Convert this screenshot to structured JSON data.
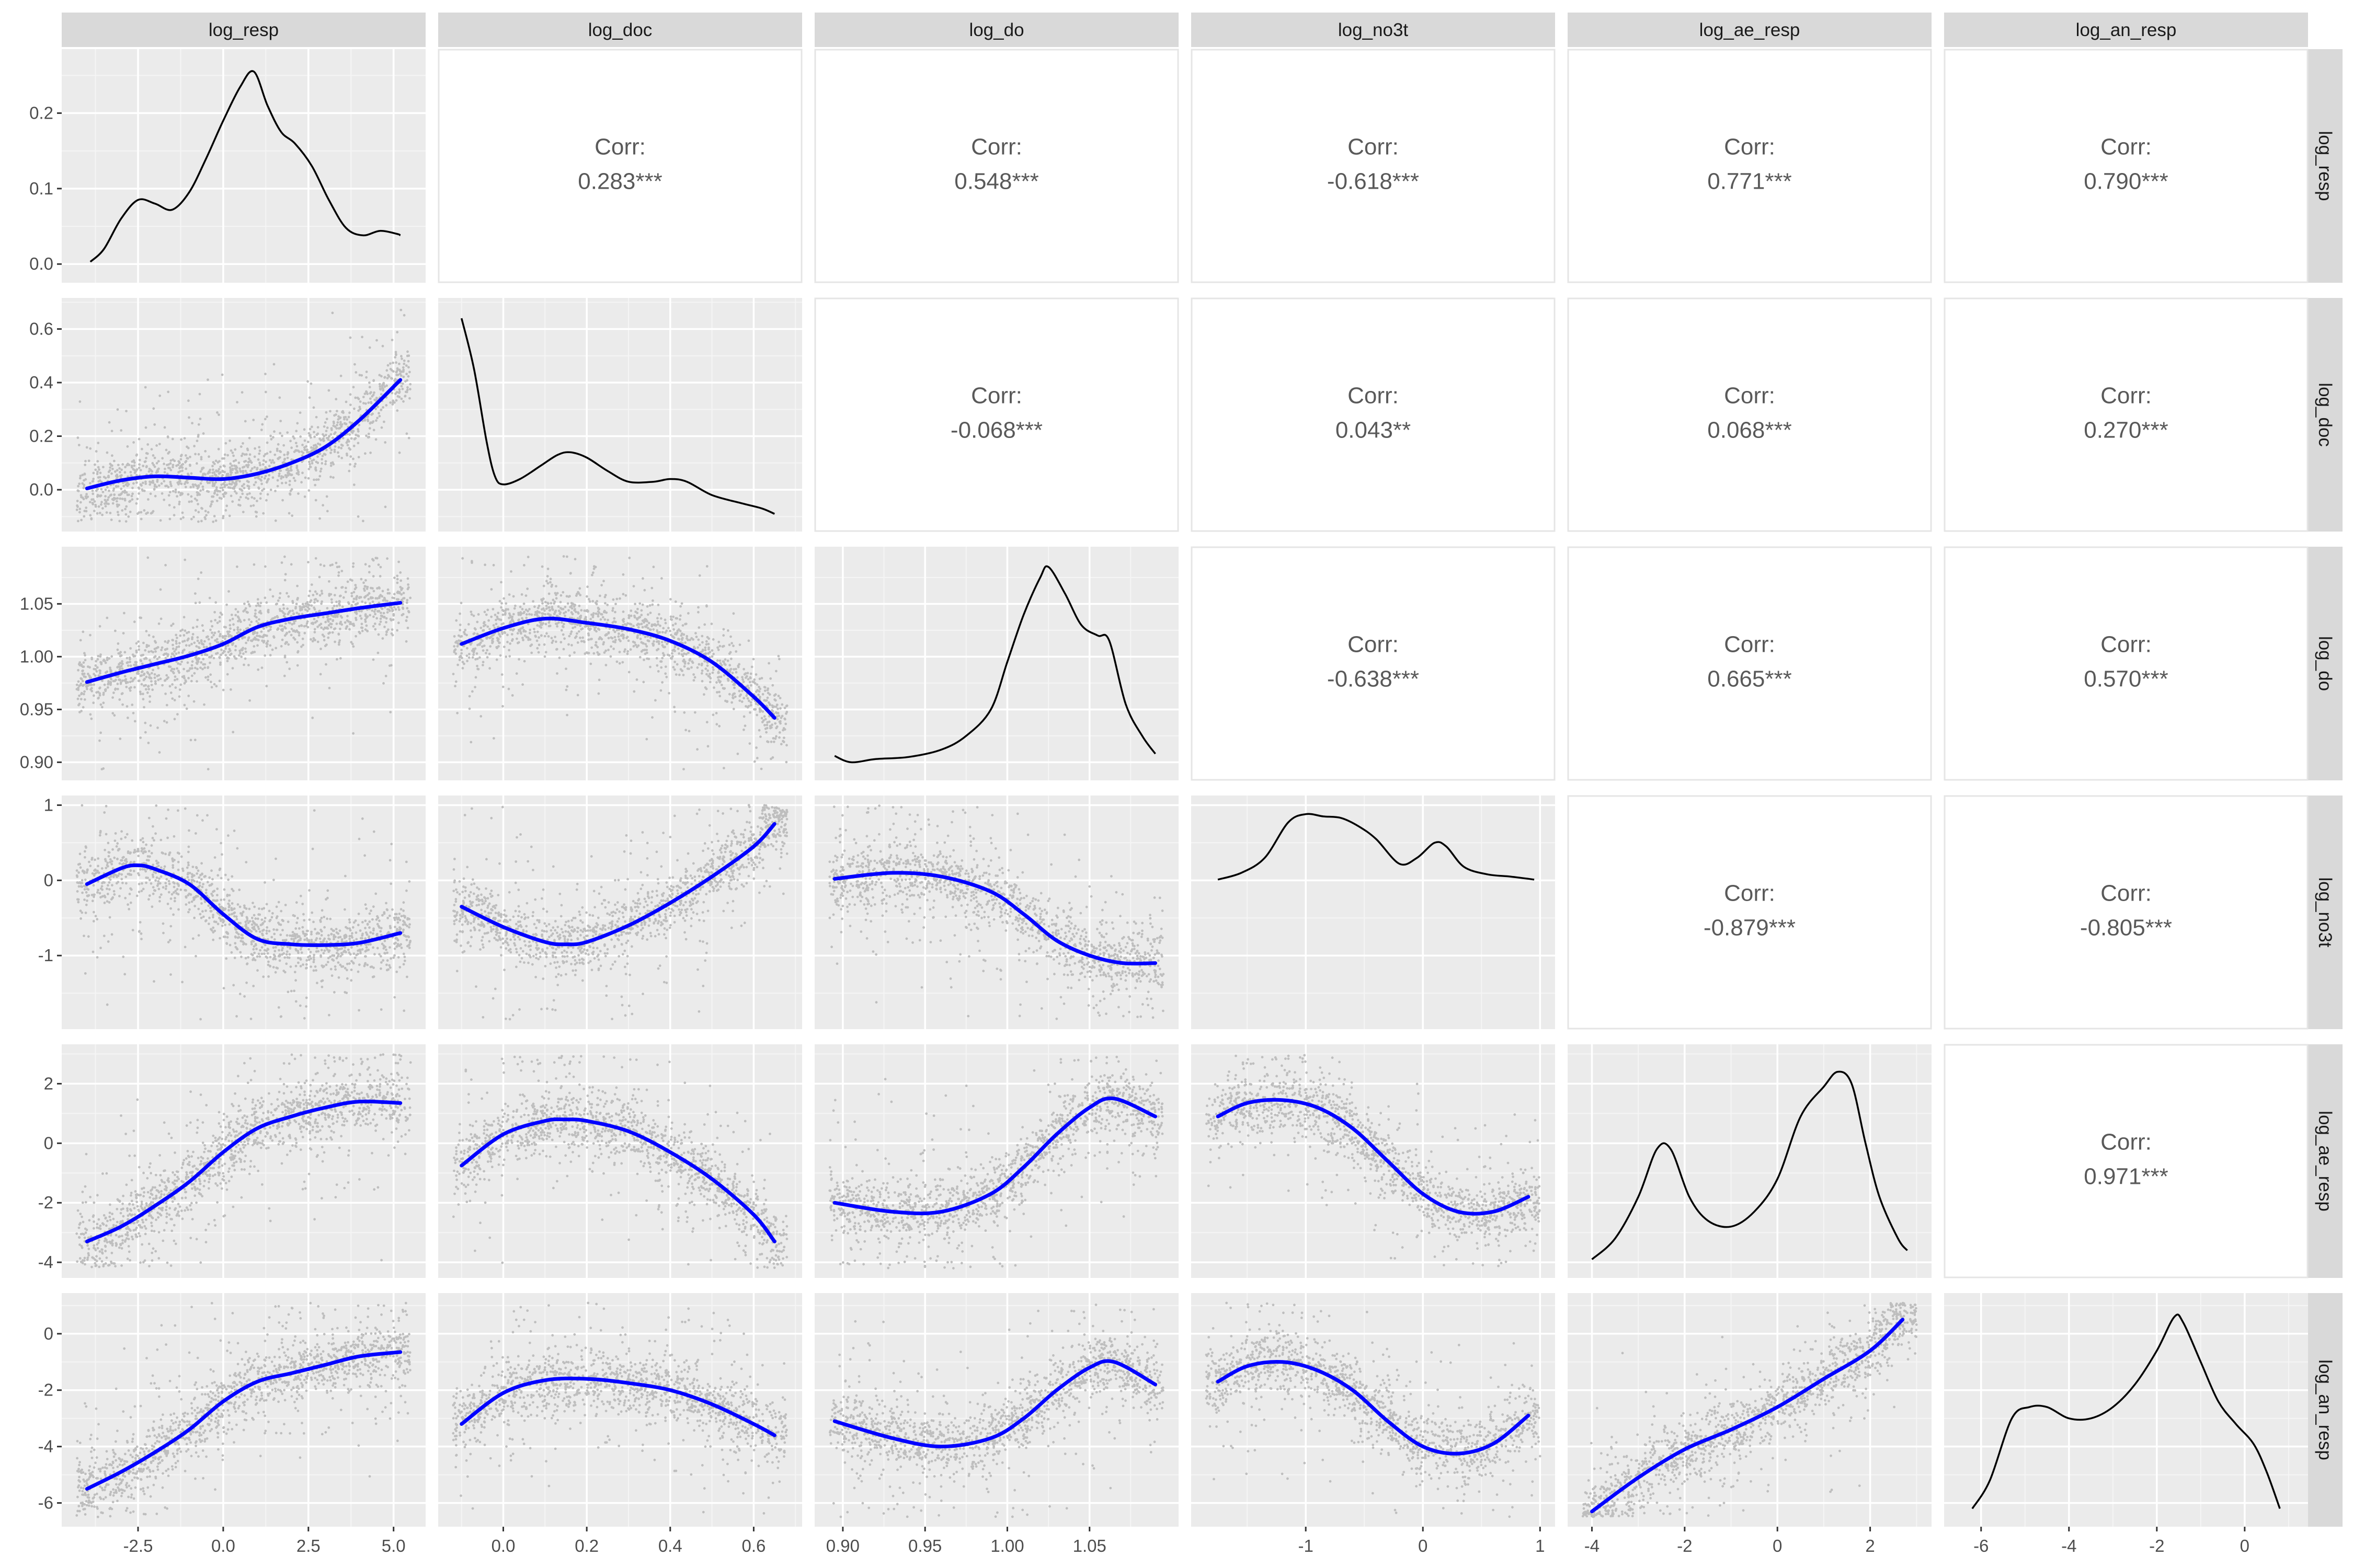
{
  "chart_data": {
    "type": "scatter",
    "variables": [
      "log_resp",
      "log_doc",
      "log_do",
      "log_no3t",
      "log_ae_resp",
      "log_an_resp"
    ],
    "corr_label": "Corr:",
    "correlations": [
      {
        "row": "log_resp",
        "col": "log_doc",
        "value": "0.283***"
      },
      {
        "row": "log_resp",
        "col": "log_do",
        "value": "0.548***"
      },
      {
        "row": "log_resp",
        "col": "log_no3t",
        "value": "-0.618***"
      },
      {
        "row": "log_resp",
        "col": "log_ae_resp",
        "value": "0.771***"
      },
      {
        "row": "log_resp",
        "col": "log_an_resp",
        "value": "0.790***"
      },
      {
        "row": "log_doc",
        "col": "log_do",
        "value": "-0.068***"
      },
      {
        "row": "log_doc",
        "col": "log_no3t",
        "value": "0.043**"
      },
      {
        "row": "log_doc",
        "col": "log_ae_resp",
        "value": "0.068***"
      },
      {
        "row": "log_doc",
        "col": "log_an_resp",
        "value": "0.270***"
      },
      {
        "row": "log_do",
        "col": "log_no3t",
        "value": "-0.638***"
      },
      {
        "row": "log_do",
        "col": "log_ae_resp",
        "value": "0.665***"
      },
      {
        "row": "log_do",
        "col": "log_an_resp",
        "value": "0.570***"
      },
      {
        "row": "log_no3t",
        "col": "log_ae_resp",
        "value": "-0.879***"
      },
      {
        "row": "log_no3t",
        "col": "log_an_resp",
        "value": "-0.805***"
      },
      {
        "row": "log_ae_resp",
        "col": "log_an_resp",
        "value": "0.971***"
      }
    ],
    "axes": {
      "log_resp": {
        "range": [
          -4.3,
          5.5
        ],
        "ticks": [
          -2.5,
          0.0,
          2.5,
          5.0
        ],
        "tick_labels": [
          "-2.5",
          "0.0",
          "2.5",
          "5.0"
        ]
      },
      "log_doc": {
        "range": [
          -0.12,
          0.68
        ],
        "ticks": [
          0.0,
          0.2,
          0.4,
          0.6
        ],
        "tick_labels": [
          "0.0",
          "0.2",
          "0.4",
          "0.6"
        ]
      },
      "log_do": {
        "range": [
          0.892,
          1.095
        ],
        "ticks": [
          0.9,
          0.95,
          1.0,
          1.05
        ],
        "tick_labels": [
          "0.90",
          "0.95",
          "1.00",
          "1.05"
        ]
      },
      "log_no3t": {
        "range": [
          -1.85,
          1.0
        ],
        "ticks": [
          -1,
          0,
          1
        ],
        "tick_labels": [
          "-1",
          "0",
          "1"
        ]
      },
      "log_ae_resp": {
        "range": [
          -4.2,
          3.0
        ],
        "ticks": [
          -4,
          -2,
          0,
          2
        ],
        "tick_labels": [
          "-4",
          "-2",
          "0",
          "2"
        ]
      },
      "log_an_resp": {
        "range": [
          -6.5,
          1.1
        ],
        "ticks": [
          -6,
          -4,
          -2,
          0
        ],
        "tick_labels": [
          "-6",
          "-4",
          "-2",
          "0"
        ]
      }
    },
    "density_axis": {
      "range": [
        -0.012,
        0.272
      ],
      "ticks": [
        0.0,
        0.1,
        0.2
      ],
      "tick_labels": [
        "0.0",
        "0.1",
        "0.2"
      ]
    },
    "densities": {
      "log_resp": [
        [
          -3.9,
          0.003
        ],
        [
          -3.5,
          0.02
        ],
        [
          -3.0,
          0.06
        ],
        [
          -2.5,
          0.085
        ],
        [
          -2.0,
          0.08
        ],
        [
          -1.5,
          0.072
        ],
        [
          -1.0,
          0.095
        ],
        [
          -0.5,
          0.14
        ],
        [
          0.0,
          0.19
        ],
        [
          0.5,
          0.235
        ],
        [
          0.9,
          0.255
        ],
        [
          1.3,
          0.21
        ],
        [
          1.7,
          0.175
        ],
        [
          2.1,
          0.16
        ],
        [
          2.6,
          0.13
        ],
        [
          3.1,
          0.085
        ],
        [
          3.6,
          0.048
        ],
        [
          4.1,
          0.038
        ],
        [
          4.6,
          0.044
        ],
        [
          5.1,
          0.04
        ],
        [
          5.2,
          0.038
        ]
      ],
      "log_doc": [
        [
          -0.1,
          0.64
        ],
        [
          -0.07,
          0.45
        ],
        [
          -0.04,
          0.18
        ],
        [
          -0.02,
          0.05
        ],
        [
          0.0,
          0.02
        ],
        [
          0.04,
          0.04
        ],
        [
          0.09,
          0.09
        ],
        [
          0.13,
          0.13
        ],
        [
          0.16,
          0.14
        ],
        [
          0.2,
          0.12
        ],
        [
          0.25,
          0.07
        ],
        [
          0.3,
          0.03
        ],
        [
          0.36,
          0.03
        ],
        [
          0.4,
          0.04
        ],
        [
          0.44,
          0.03
        ],
        [
          0.5,
          -0.02
        ],
        [
          0.57,
          -0.05
        ],
        [
          0.62,
          -0.07
        ],
        [
          0.65,
          -0.09
        ]
      ],
      "log_do": [
        [
          0.895,
          0.906
        ],
        [
          0.905,
          0.9
        ],
        [
          0.92,
          0.903
        ],
        [
          0.94,
          0.905
        ],
        [
          0.96,
          0.912
        ],
        [
          0.975,
          0.925
        ],
        [
          0.99,
          0.95
        ],
        [
          1.0,
          0.995
        ],
        [
          1.01,
          1.04
        ],
        [
          1.02,
          1.075
        ],
        [
          1.025,
          1.085
        ],
        [
          1.035,
          1.06
        ],
        [
          1.045,
          1.03
        ],
        [
          1.055,
          1.02
        ],
        [
          1.062,
          1.015
        ],
        [
          1.072,
          0.955
        ],
        [
          1.082,
          0.925
        ],
        [
          1.09,
          0.908
        ]
      ],
      "log_no3t": [
        [
          -1.75,
          0.01
        ],
        [
          -1.55,
          0.1
        ],
        [
          -1.35,
          0.3
        ],
        [
          -1.15,
          0.77
        ],
        [
          -1.0,
          0.88
        ],
        [
          -0.85,
          0.85
        ],
        [
          -0.7,
          0.83
        ],
        [
          -0.55,
          0.72
        ],
        [
          -0.4,
          0.55
        ],
        [
          -0.2,
          0.22
        ],
        [
          -0.05,
          0.3
        ],
        [
          0.1,
          0.5
        ],
        [
          0.2,
          0.45
        ],
        [
          0.35,
          0.18
        ],
        [
          0.55,
          0.08
        ],
        [
          0.75,
          0.05
        ],
        [
          0.95,
          0.01
        ]
      ],
      "log_ae_resp": [
        [
          -4.0,
          -3.9
        ],
        [
          -3.5,
          -3.2
        ],
        [
          -3.0,
          -1.8
        ],
        [
          -2.6,
          -0.2
        ],
        [
          -2.3,
          -0.2
        ],
        [
          -1.9,
          -1.8
        ],
        [
          -1.5,
          -2.6
        ],
        [
          -1.0,
          -2.8
        ],
        [
          -0.5,
          -2.3
        ],
        [
          0.0,
          -1.2
        ],
        [
          0.5,
          0.9
        ],
        [
          1.0,
          1.9
        ],
        [
          1.3,
          2.4
        ],
        [
          1.6,
          2.0
        ],
        [
          1.9,
          0.0
        ],
        [
          2.2,
          -1.8
        ],
        [
          2.6,
          -3.2
        ],
        [
          2.8,
          -3.6
        ]
      ],
      "log_an_resp": [
        [
          -6.2,
          -6.2
        ],
        [
          -5.8,
          -5.2
        ],
        [
          -5.3,
          -3.0
        ],
        [
          -4.9,
          -2.6
        ],
        [
          -4.5,
          -2.6
        ],
        [
          -4.0,
          -3.0
        ],
        [
          -3.5,
          -3.0
        ],
        [
          -3.0,
          -2.6
        ],
        [
          -2.5,
          -1.8
        ],
        [
          -2.0,
          -0.6
        ],
        [
          -1.6,
          0.6
        ],
        [
          -1.4,
          0.4
        ],
        [
          -1.0,
          -1.0
        ],
        [
          -0.6,
          -2.4
        ],
        [
          -0.2,
          -3.2
        ],
        [
          0.2,
          -3.9
        ],
        [
          0.5,
          -4.9
        ],
        [
          0.8,
          -6.2
        ]
      ]
    },
    "smooth_fits": [
      {
        "x": "log_resp",
        "y": "log_doc",
        "points": [
          [
            -4.0,
            0.005
          ],
          [
            -3.0,
            0.035
          ],
          [
            -2.0,
            0.05
          ],
          [
            -1.0,
            0.045
          ],
          [
            0.0,
            0.04
          ],
          [
            1.0,
            0.06
          ],
          [
            2.0,
            0.1
          ],
          [
            3.0,
            0.16
          ],
          [
            4.0,
            0.26
          ],
          [
            5.2,
            0.41
          ]
        ]
      },
      {
        "x": "log_resp",
        "y": "log_do",
        "points": [
          [
            -4.0,
            0.976
          ],
          [
            -3.0,
            0.985
          ],
          [
            -2.0,
            0.993
          ],
          [
            -1.0,
            1.001
          ],
          [
            0.0,
            1.012
          ],
          [
            1.0,
            1.028
          ],
          [
            2.0,
            1.036
          ],
          [
            3.0,
            1.041
          ],
          [
            4.0,
            1.046
          ],
          [
            5.2,
            1.051
          ]
        ]
      },
      {
        "x": "log_resp",
        "y": "log_no3t",
        "points": [
          [
            -4.0,
            -0.05
          ],
          [
            -3.0,
            0.16
          ],
          [
            -2.5,
            0.2
          ],
          [
            -2.0,
            0.15
          ],
          [
            -1.0,
            -0.05
          ],
          [
            0.0,
            -0.45
          ],
          [
            1.0,
            -0.78
          ],
          [
            2.0,
            -0.85
          ],
          [
            3.0,
            -0.86
          ],
          [
            4.0,
            -0.83
          ],
          [
            5.2,
            -0.7
          ]
        ]
      },
      {
        "x": "log_resp",
        "y": "log_ae_resp",
        "points": [
          [
            -4.0,
            -3.3
          ],
          [
            -3.0,
            -2.8
          ],
          [
            -2.0,
            -2.1
          ],
          [
            -1.0,
            -1.3
          ],
          [
            0.0,
            -0.3
          ],
          [
            1.0,
            0.5
          ],
          [
            2.0,
            0.9
          ],
          [
            3.0,
            1.2
          ],
          [
            4.0,
            1.4
          ],
          [
            5.2,
            1.35
          ]
        ]
      },
      {
        "x": "log_resp",
        "y": "log_an_resp",
        "points": [
          [
            -4.0,
            -5.5
          ],
          [
            -3.0,
            -4.9
          ],
          [
            -2.0,
            -4.2
          ],
          [
            -1.0,
            -3.4
          ],
          [
            0.0,
            -2.4
          ],
          [
            1.0,
            -1.7
          ],
          [
            2.0,
            -1.4
          ],
          [
            3.0,
            -1.1
          ],
          [
            4.0,
            -0.8
          ],
          [
            5.2,
            -0.65
          ]
        ]
      },
      {
        "x": "log_doc",
        "y": "log_do",
        "points": [
          [
            -0.1,
            1.012
          ],
          [
            0.0,
            1.027
          ],
          [
            0.1,
            1.036
          ],
          [
            0.2,
            1.032
          ],
          [
            0.3,
            1.026
          ],
          [
            0.4,
            1.015
          ],
          [
            0.5,
            0.995
          ],
          [
            0.6,
            0.962
          ],
          [
            0.65,
            0.942
          ]
        ]
      },
      {
        "x": "log_doc",
        "y": "log_no3t",
        "points": [
          [
            -0.1,
            -0.35
          ],
          [
            0.0,
            -0.62
          ],
          [
            0.1,
            -0.82
          ],
          [
            0.15,
            -0.85
          ],
          [
            0.2,
            -0.82
          ],
          [
            0.3,
            -0.6
          ],
          [
            0.4,
            -0.3
          ],
          [
            0.5,
            0.05
          ],
          [
            0.6,
            0.45
          ],
          [
            0.65,
            0.75
          ]
        ]
      },
      {
        "x": "log_doc",
        "y": "log_ae_resp",
        "points": [
          [
            -0.1,
            -0.75
          ],
          [
            0.0,
            0.3
          ],
          [
            0.1,
            0.75
          ],
          [
            0.15,
            0.8
          ],
          [
            0.2,
            0.75
          ],
          [
            0.3,
            0.4
          ],
          [
            0.4,
            -0.3
          ],
          [
            0.5,
            -1.2
          ],
          [
            0.6,
            -2.4
          ],
          [
            0.65,
            -3.3
          ]
        ]
      },
      {
        "x": "log_doc",
        "y": "log_an_resp",
        "points": [
          [
            -0.1,
            -3.2
          ],
          [
            0.0,
            -2.1
          ],
          [
            0.1,
            -1.65
          ],
          [
            0.2,
            -1.6
          ],
          [
            0.3,
            -1.75
          ],
          [
            0.4,
            -2.0
          ],
          [
            0.5,
            -2.5
          ],
          [
            0.6,
            -3.2
          ],
          [
            0.65,
            -3.6
          ]
        ]
      },
      {
        "x": "log_do",
        "y": "log_no3t",
        "points": [
          [
            0.895,
            0.02
          ],
          [
            0.93,
            0.1
          ],
          [
            0.96,
            0.05
          ],
          [
            0.99,
            -0.15
          ],
          [
            1.01,
            -0.45
          ],
          [
            1.03,
            -0.8
          ],
          [
            1.05,
            -1.0
          ],
          [
            1.07,
            -1.1
          ],
          [
            1.09,
            -1.1
          ]
        ]
      },
      {
        "x": "log_do",
        "y": "log_ae_resp",
        "points": [
          [
            0.895,
            -2.0
          ],
          [
            0.93,
            -2.3
          ],
          [
            0.96,
            -2.3
          ],
          [
            0.99,
            -1.7
          ],
          [
            1.01,
            -0.8
          ],
          [
            1.03,
            0.3
          ],
          [
            1.05,
            1.2
          ],
          [
            1.065,
            1.5
          ],
          [
            1.09,
            0.9
          ]
        ]
      },
      {
        "x": "log_do",
        "y": "log_an_resp",
        "points": [
          [
            0.895,
            -3.1
          ],
          [
            0.93,
            -3.7
          ],
          [
            0.96,
            -4.0
          ],
          [
            0.99,
            -3.7
          ],
          [
            1.01,
            -3.0
          ],
          [
            1.03,
            -2.0
          ],
          [
            1.05,
            -1.2
          ],
          [
            1.065,
            -1.0
          ],
          [
            1.09,
            -1.8
          ]
        ]
      },
      {
        "x": "log_no3t",
        "y": "log_ae_resp",
        "points": [
          [
            -1.75,
            0.9
          ],
          [
            -1.5,
            1.35
          ],
          [
            -1.2,
            1.45
          ],
          [
            -0.9,
            1.2
          ],
          [
            -0.6,
            0.5
          ],
          [
            -0.3,
            -0.6
          ],
          [
            0.0,
            -1.7
          ],
          [
            0.3,
            -2.3
          ],
          [
            0.6,
            -2.3
          ],
          [
            0.9,
            -1.8
          ]
        ]
      },
      {
        "x": "log_no3t",
        "y": "log_an_resp",
        "points": [
          [
            -1.75,
            -1.7
          ],
          [
            -1.5,
            -1.15
          ],
          [
            -1.2,
            -1.0
          ],
          [
            -0.9,
            -1.3
          ],
          [
            -0.6,
            -2.0
          ],
          [
            -0.3,
            -3.1
          ],
          [
            0.0,
            -4.0
          ],
          [
            0.3,
            -4.25
          ],
          [
            0.6,
            -3.9
          ],
          [
            0.9,
            -2.9
          ]
        ]
      },
      {
        "x": "log_ae_resp",
        "y": "log_an_resp",
        "points": [
          [
            -4.0,
            -6.3
          ],
          [
            -3.0,
            -5.1
          ],
          [
            -2.0,
            -4.1
          ],
          [
            -1.0,
            -3.4
          ],
          [
            0.0,
            -2.6
          ],
          [
            1.0,
            -1.6
          ],
          [
            2.0,
            -0.6
          ],
          [
            2.7,
            0.5
          ]
        ]
      }
    ]
  }
}
